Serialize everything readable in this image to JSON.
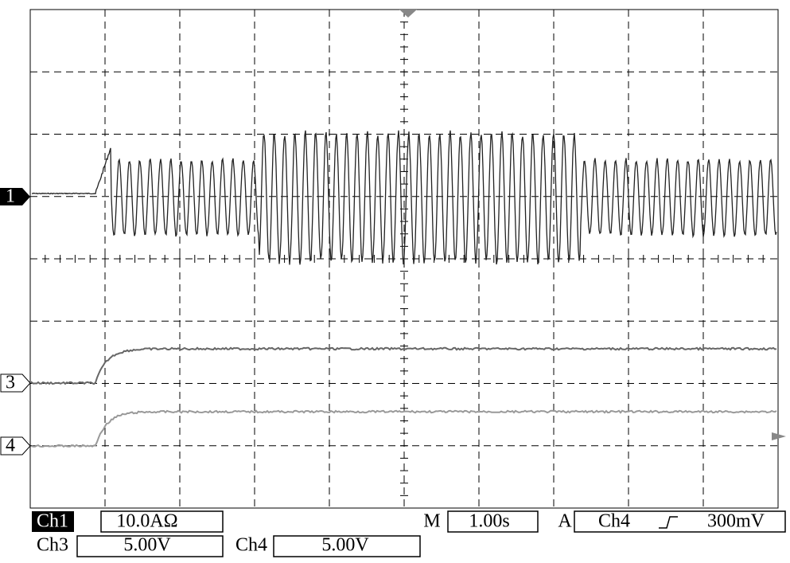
{
  "markers": {
    "ch1": "1",
    "ch3": "3",
    "ch4": "4"
  },
  "status": {
    "ch1_label": "Ch1",
    "ch1_scale": "10.0AΩ",
    "time_label": "M",
    "time_scale": "1.00s",
    "trigger_label": "A",
    "trigger_source": "Ch4",
    "trigger_level": "300mV",
    "ch3_label": "Ch3",
    "ch3_scale": "5.00V",
    "ch4_label": "Ch4",
    "ch4_scale": "5.00V"
  }
}
